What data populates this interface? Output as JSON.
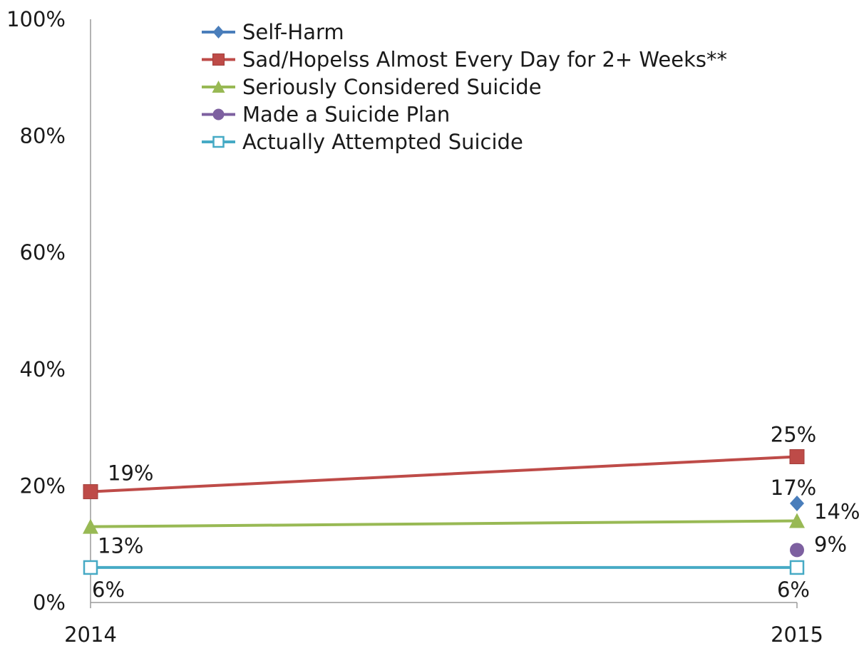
{
  "chart_data": {
    "type": "line",
    "title": "",
    "xlabel": "",
    "ylabel": "",
    "ylim": [
      0,
      100
    ],
    "y_ticks": [
      "0%",
      "20%",
      "40%",
      "60%",
      "80%",
      "100%"
    ],
    "categories": [
      "2014",
      "2015"
    ],
    "grid": false,
    "legend_position": "top-center",
    "series": [
      {
        "name": "Self-Harm",
        "color": "#4a7ebb",
        "marker": "diamond",
        "values": [
          null,
          17
        ],
        "labels": [
          null,
          "17%"
        ]
      },
      {
        "name": "Sad/Hopelss Almost Every Day for 2+ Weeks**",
        "color": "#be4b48",
        "marker": "square",
        "values": [
          19,
          25
        ],
        "labels": [
          "19%",
          "25%"
        ]
      },
      {
        "name": "Seriously Considered Suicide",
        "color": "#98b954",
        "marker": "triangle",
        "values": [
          13,
          14
        ],
        "labels": [
          "13%",
          "14%"
        ]
      },
      {
        "name": "Made a Suicide Plan",
        "color": "#7d60a0",
        "marker": "circle",
        "values": [
          null,
          9
        ],
        "labels": [
          null,
          "9%"
        ]
      },
      {
        "name": "Actually Attempted Suicide",
        "color": "#46aac5",
        "marker": "open-square",
        "values": [
          6,
          6
        ],
        "labels": [
          "6%",
          "6%"
        ]
      }
    ]
  }
}
